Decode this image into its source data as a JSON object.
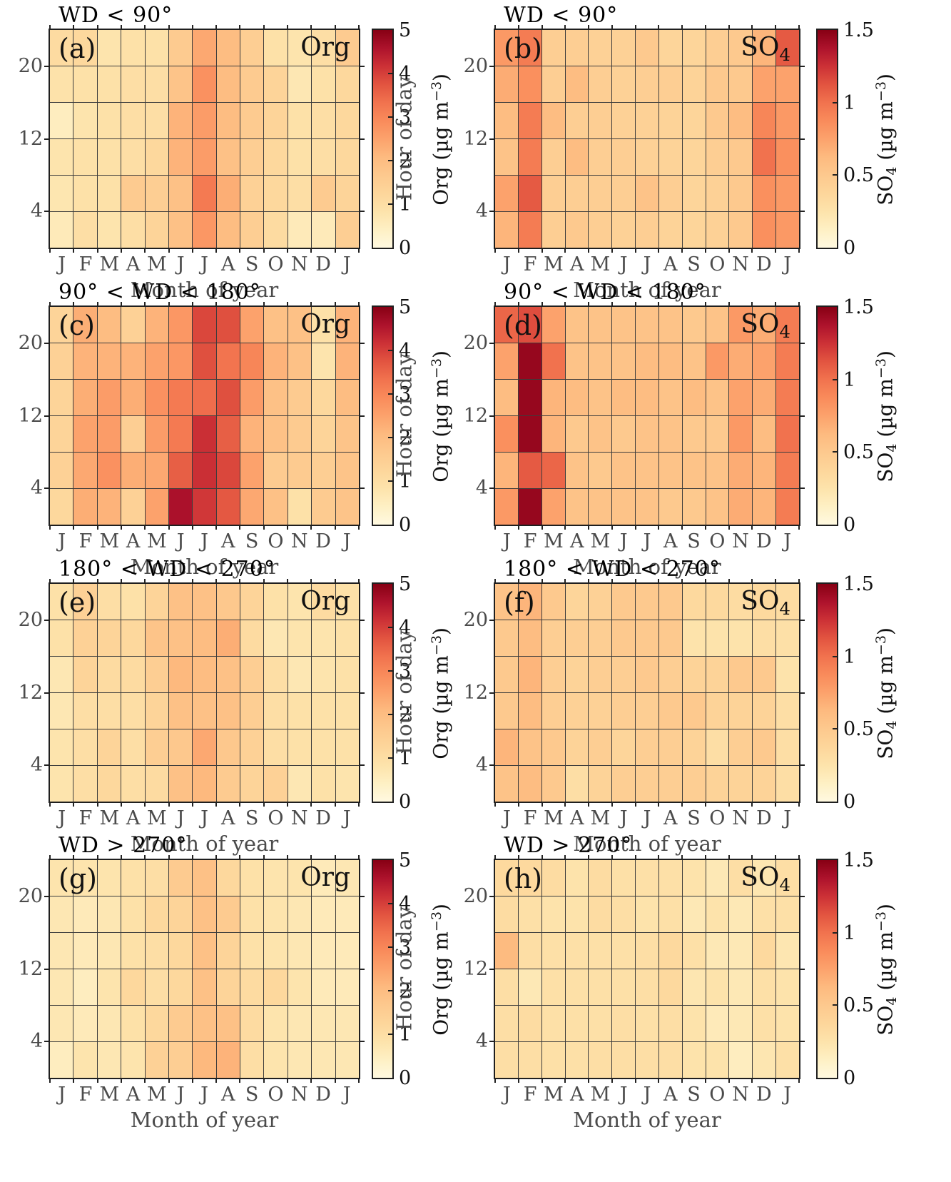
{
  "figure_description": "Diurnal-seasonal heatmaps of Org and SO4 aerosol mass concentration split by wind direction sector",
  "chart_data": {
    "type": "heatmap",
    "x_label": "Month of year",
    "y_label": "Hour of day",
    "x_categories": [
      "J",
      "F",
      "M",
      "A",
      "M",
      "J",
      "J",
      "A",
      "S",
      "O",
      "N",
      "D",
      "J"
    ],
    "y_bins": [
      "20-24",
      "16-20",
      "12-16",
      "8-12",
      "4-8",
      "0-4"
    ],
    "y_tick_labels": [
      "20",
      "12",
      "4"
    ],
    "grid": "on",
    "colormap_stops": [
      "#FFF9E0",
      "#FEF0C4",
      "#FDE3AB",
      "#FDD69B",
      "#FDC98E",
      "#FDBA7F",
      "#FCA26C",
      "#F98B5B",
      "#F1724E",
      "#E25440",
      "#CC3136",
      "#AD122C",
      "#870014"
    ],
    "panels": [
      {
        "panel": "(a)",
        "title": "WD < 90°",
        "species": {
          "main": "Org",
          "sub": ""
        },
        "vmin": 0,
        "vmax": 5,
        "colorbar": {
          "ticks": [
            "0",
            "1",
            "2",
            "3",
            "4",
            "5"
          ],
          "label": {
            "t1": "Org",
            "sub": "",
            "t2": " (µg m",
            "sup": "−3",
            "t3": ")"
          }
        },
        "values": [
          [
            1.1,
            1.2,
            0.8,
            0.9,
            0.9,
            1.6,
            2.4,
            2.0,
            1.5,
            0.9,
            0.8,
            1.0,
            1.6
          ],
          [
            0.85,
            0.9,
            0.9,
            1.0,
            1.0,
            1.8,
            2.8,
            2.0,
            1.6,
            1.3,
            0.7,
            0.9,
            1.2
          ],
          [
            0.5,
            0.8,
            0.9,
            1.0,
            1.0,
            2.2,
            2.6,
            2.0,
            1.6,
            1.3,
            0.9,
            1.0,
            1.2
          ],
          [
            0.8,
            0.9,
            0.9,
            1.0,
            1.2,
            2.2,
            2.6,
            1.9,
            1.5,
            1.2,
            0.9,
            1.0,
            1.2
          ],
          [
            0.75,
            0.9,
            0.9,
            1.6,
            1.5,
            1.9,
            3.2,
            2.3,
            1.4,
            1.2,
            1.0,
            1.6,
            1.3
          ],
          [
            0.6,
            1.0,
            0.8,
            1.0,
            1.3,
            1.9,
            2.7,
            2.0,
            1.5,
            1.1,
            0.6,
            0.6,
            1.5
          ]
        ]
      },
      {
        "panel": "(b)",
        "title": "WD < 90°",
        "species": {
          "main": "SO",
          "sub": "4"
        },
        "vmin": 0,
        "vmax": 1.5,
        "colorbar": {
          "ticks": [
            "0",
            "0.5",
            "1",
            "1.5"
          ],
          "label": {
            "t1": "SO",
            "sub": "4",
            "t2": " (µg m",
            "sup": "−3",
            "t3": ")"
          }
        },
        "values": [
          [
            0.8,
            0.95,
            0.45,
            0.45,
            0.42,
            0.42,
            0.5,
            0.38,
            0.38,
            0.45,
            0.5,
            0.65,
            1.1
          ],
          [
            0.7,
            0.85,
            0.45,
            0.6,
            0.45,
            0.42,
            0.45,
            0.45,
            0.4,
            0.5,
            0.5,
            0.75,
            0.75
          ],
          [
            0.6,
            0.95,
            0.6,
            0.45,
            0.45,
            0.42,
            0.42,
            0.4,
            0.38,
            0.5,
            0.6,
            0.9,
            0.8
          ],
          [
            0.55,
            0.95,
            0.45,
            0.6,
            0.45,
            0.45,
            0.42,
            0.4,
            0.38,
            0.45,
            0.5,
            1.0,
            0.85
          ],
          [
            0.75,
            1.1,
            0.45,
            0.45,
            0.45,
            0.45,
            0.55,
            0.45,
            0.38,
            0.42,
            0.5,
            0.85,
            0.8
          ],
          [
            0.65,
            0.95,
            0.45,
            0.5,
            0.45,
            0.42,
            0.45,
            0.4,
            0.38,
            0.42,
            0.5,
            0.85,
            0.8
          ]
        ]
      },
      {
        "panel": "(c)",
        "title": "90° < WD < 180°",
        "species": {
          "main": "Org",
          "sub": ""
        },
        "vmin": 0,
        "vmax": 5,
        "colorbar": {
          "ticks": [
            "0",
            "1",
            "2",
            "3",
            "4",
            "5"
          ],
          "label": {
            "t1": "Org",
            "sub": "",
            "t2": " (µg m",
            "sup": "−3",
            "t3": ")"
          }
        },
        "values": [
          [
            1.3,
            2.3,
            2.0,
            1.4,
            2.2,
            2.7,
            3.9,
            3.8,
            2.5,
            1.9,
            1.9,
            0.9,
            2.2
          ],
          [
            1.4,
            2.2,
            2.2,
            2.2,
            2.5,
            2.7,
            3.8,
            3.3,
            3.0,
            2.2,
            1.9,
            0.8,
            2.2
          ],
          [
            1.3,
            2.3,
            2.6,
            2.3,
            2.8,
            3.2,
            3.4,
            3.8,
            2.6,
            1.9,
            1.6,
            1.2,
            2.0
          ],
          [
            1.3,
            2.5,
            2.6,
            1.5,
            2.6,
            3.2,
            4.2,
            3.6,
            2.2,
            1.9,
            1.6,
            1.3,
            1.8
          ],
          [
            1.4,
            2.4,
            2.8,
            2.3,
            2.4,
            3.6,
            4.2,
            3.9,
            2.5,
            1.6,
            1.6,
            1.5,
            1.8
          ],
          [
            1.2,
            2.3,
            2.2,
            1.4,
            2.5,
            4.6,
            4.1,
            3.7,
            2.4,
            1.9,
            0.9,
            1.6,
            1.8
          ]
        ]
      },
      {
        "panel": "(d)",
        "title": "90° < WD < 180°",
        "species": {
          "main": "SO",
          "sub": "4"
        },
        "vmin": 0,
        "vmax": 1.5,
        "colorbar": {
          "ticks": [
            "0",
            "0.5",
            "1",
            "1.5"
          ],
          "label": {
            "t1": "SO",
            "sub": "4",
            "t2": " (µg m",
            "sup": "−3",
            "t3": ")"
          }
        },
        "values": [
          [
            1.05,
            1.15,
            0.75,
            0.55,
            0.55,
            0.55,
            0.55,
            0.55,
            0.5,
            0.55,
            0.8,
            0.7,
            0.95
          ],
          [
            0.75,
            1.45,
            1.0,
            0.55,
            0.55,
            0.55,
            0.6,
            0.6,
            0.55,
            0.8,
            0.7,
            0.75,
            0.95
          ],
          [
            0.6,
            1.45,
            0.65,
            0.6,
            0.55,
            0.6,
            0.6,
            0.55,
            0.6,
            0.55,
            0.75,
            0.7,
            0.95
          ],
          [
            0.85,
            1.45,
            0.65,
            0.5,
            0.55,
            0.5,
            0.55,
            0.55,
            0.5,
            0.5,
            0.8,
            0.6,
            1.0
          ],
          [
            0.65,
            1.1,
            1.05,
            0.55,
            0.5,
            0.55,
            0.55,
            0.55,
            0.55,
            0.55,
            0.7,
            0.65,
            0.95
          ],
          [
            0.8,
            1.45,
            0.75,
            0.55,
            0.55,
            0.55,
            0.55,
            0.5,
            0.5,
            0.55,
            0.7,
            0.65,
            0.95
          ]
        ]
      },
      {
        "panel": "(e)",
        "title": "180° < WD < 270°",
        "species": {
          "main": "Org",
          "sub": ""
        },
        "vmin": 0,
        "vmax": 5,
        "colorbar": {
          "ticks": [
            "0",
            "1",
            "2",
            "3",
            "4",
            "5"
          ],
          "label": {
            "t1": "Org",
            "sub": "",
            "t2": " (µg m",
            "sup": "−3",
            "t3": ")"
          }
        },
        "values": [
          [
            0.9,
            1.4,
            1.0,
            0.9,
            1.3,
            1.9,
            1.9,
            1.7,
            1.3,
            0.9,
            0.8,
            1.1,
            0.9
          ],
          [
            0.9,
            1.4,
            1.3,
            1.2,
            1.8,
            1.9,
            2.0,
            2.3,
            1.1,
            0.7,
            0.8,
            0.8,
            0.9
          ],
          [
            0.7,
            1.3,
            1.1,
            1.1,
            1.5,
            2.1,
            2.0,
            1.9,
            1.5,
            1.0,
            0.7,
            0.8,
            0.9
          ],
          [
            0.7,
            1.0,
            1.0,
            1.0,
            1.3,
            1.9,
            1.9,
            1.9,
            1.5,
            1.0,
            0.9,
            0.9,
            0.9
          ],
          [
            0.8,
            1.0,
            1.3,
            1.0,
            1.5,
            1.7,
            2.4,
            1.7,
            1.4,
            1.0,
            0.9,
            0.9,
            0.9
          ],
          [
            0.8,
            1.0,
            1.2,
            1.0,
            1.1,
            1.9,
            2.1,
            1.6,
            1.3,
            1.4,
            0.7,
            0.9,
            0.8
          ]
        ]
      },
      {
        "panel": "(f)",
        "title": "180° < WD < 270°",
        "species": {
          "main": "SO",
          "sub": "4"
        },
        "vmin": 0,
        "vmax": 1.5,
        "colorbar": {
          "ticks": [
            "0",
            "0.5",
            "1",
            "1.5"
          ],
          "label": {
            "t1": "SO",
            "sub": "4",
            "t2": " (µg m",
            "sup": "−3",
            "t3": ")"
          }
        },
        "values": [
          [
            0.55,
            0.65,
            0.5,
            0.38,
            0.42,
            0.5,
            0.5,
            0.5,
            0.35,
            0.35,
            0.32,
            0.35,
            0.32
          ],
          [
            0.5,
            0.6,
            0.45,
            0.45,
            0.45,
            0.5,
            0.5,
            0.5,
            0.25,
            0.25,
            0.25,
            0.3,
            0.28
          ],
          [
            0.5,
            0.65,
            0.45,
            0.4,
            0.45,
            0.45,
            0.5,
            0.45,
            0.4,
            0.4,
            0.5,
            0.5,
            0.25
          ],
          [
            0.5,
            0.6,
            0.45,
            0.42,
            0.42,
            0.45,
            0.45,
            0.5,
            0.5,
            0.4,
            0.4,
            0.4,
            0.3
          ],
          [
            0.65,
            0.55,
            0.5,
            0.4,
            0.45,
            0.38,
            0.45,
            0.45,
            0.4,
            0.3,
            0.45,
            0.5,
            0.3
          ],
          [
            0.55,
            0.6,
            0.5,
            0.3,
            0.4,
            0.45,
            0.45,
            0.45,
            0.45,
            0.4,
            0.4,
            0.4,
            0.3
          ]
        ]
      },
      {
        "panel": "(g)",
        "title": "WD > 270°",
        "species": {
          "main": "Org",
          "sub": ""
        },
        "vmin": 0,
        "vmax": 5,
        "colorbar": {
          "ticks": [
            "0",
            "1",
            "2",
            "3",
            "4",
            "5"
          ],
          "label": {
            "t1": "Org",
            "sub": "",
            "t2": " (µg m",
            "sup": "−3",
            "t3": ")"
          }
        },
        "values": [
          [
            0.8,
            0.8,
            0.8,
            0.9,
            1.0,
            1.6,
            1.9,
            1.2,
            0.9,
            0.8,
            0.8,
            0.6,
            0.7
          ],
          [
            0.7,
            0.6,
            0.7,
            0.9,
            1.2,
            1.3,
            1.9,
            1.6,
            0.9,
            0.8,
            0.7,
            0.6,
            0.6
          ],
          [
            0.7,
            0.6,
            0.7,
            0.9,
            1.0,
            1.2,
            1.9,
            1.3,
            0.9,
            0.8,
            0.7,
            0.6,
            0.6
          ],
          [
            0.7,
            0.5,
            0.8,
            1.2,
            1.0,
            1.2,
            1.9,
            1.3,
            1.1,
            1.2,
            0.8,
            0.6,
            0.6
          ],
          [
            0.7,
            0.6,
            0.7,
            0.9,
            1.2,
            1.6,
            1.9,
            1.9,
            1.1,
            0.8,
            0.7,
            0.7,
            0.7
          ],
          [
            0.5,
            0.8,
            0.7,
            0.8,
            1.4,
            1.5,
            2.1,
            2.2,
            1.0,
            0.8,
            0.7,
            0.7,
            0.7
          ]
        ]
      },
      {
        "panel": "(h)",
        "title": "WD > 270°",
        "species": {
          "main": "SO",
          "sub": "4"
        },
        "vmin": 0,
        "vmax": 1.5,
        "colorbar": {
          "ticks": [
            "0",
            "0.5",
            "1",
            "1.5"
          ],
          "label": {
            "t1": "SO",
            "sub": "4",
            "t2": " (µg m",
            "sup": "−3",
            "t3": ")"
          }
        },
        "values": [
          [
            0.35,
            0.35,
            0.32,
            0.25,
            0.32,
            0.28,
            0.28,
            0.28,
            0.25,
            0.2,
            0.3,
            0.22,
            0.3
          ],
          [
            0.32,
            0.28,
            0.25,
            0.25,
            0.32,
            0.3,
            0.25,
            0.28,
            0.2,
            0.25,
            0.2,
            0.28,
            0.28
          ],
          [
            0.62,
            0.3,
            0.28,
            0.28,
            0.28,
            0.28,
            0.3,
            0.35,
            0.28,
            0.2,
            0.2,
            0.35,
            0.22
          ],
          [
            0.3,
            0.2,
            0.28,
            0.28,
            0.28,
            0.28,
            0.3,
            0.35,
            0.22,
            0.25,
            0.2,
            0.28,
            0.25
          ],
          [
            0.3,
            0.32,
            0.28,
            0.28,
            0.28,
            0.3,
            0.28,
            0.3,
            0.25,
            0.18,
            0.2,
            0.28,
            0.25
          ],
          [
            0.3,
            0.3,
            0.28,
            0.28,
            0.3,
            0.3,
            0.3,
            0.3,
            0.25,
            0.25,
            0.15,
            0.22,
            0.28
          ]
        ]
      }
    ]
  },
  "colors": {
    "axis_text": "#4b4b4b",
    "title_text": "#000000",
    "plot_border": "#1f1f1f",
    "gridline": "#3c3c3c"
  }
}
